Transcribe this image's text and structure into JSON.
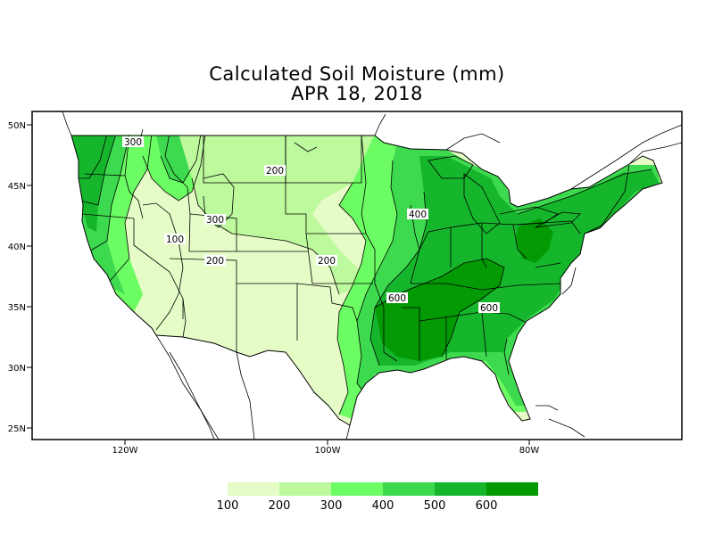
{
  "title": "Calculated Soil Moisture (mm)",
  "subtitle": "APR 18, 2018",
  "axes": {
    "lat_labels": [
      "50N",
      "45N",
      "40N",
      "35N",
      "30N",
      "25N"
    ],
    "lon_labels": [
      "120W",
      "100W",
      "80W"
    ]
  },
  "contour_labels": [
    "300",
    "200",
    "300",
    "100",
    "200",
    "200",
    "400",
    "600",
    "600"
  ],
  "legend": {
    "labels": [
      "100",
      "200",
      "300",
      "400",
      "500",
      "600"
    ],
    "colors": [
      "#e6fcc6",
      "#bdf99d",
      "#6cfc63",
      "#3dd94f",
      "#16b62c",
      "#039a03"
    ]
  },
  "colors": {
    "none": "#ffffff",
    "c100": "#e6fcc6",
    "c200": "#bdf99d",
    "c300": "#6cfc63",
    "c400": "#3dd94f",
    "c500": "#16b62c",
    "c600": "#039a03"
  }
}
